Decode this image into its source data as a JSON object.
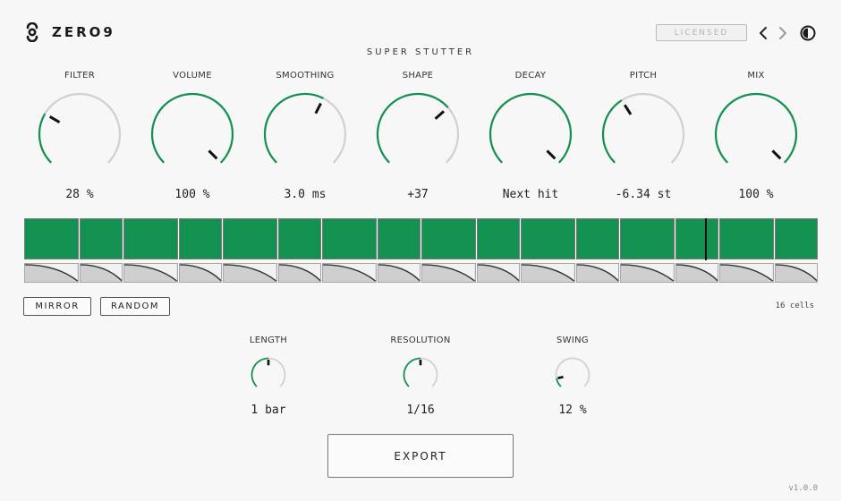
{
  "header": {
    "brand": "ZERO9",
    "plugin_title": "SUPER STUTTER",
    "license_badge": "LICENSED",
    "icons": {
      "logo": "zero9-logo-icon",
      "prev": "chevron-left-icon",
      "next": "chevron-right-icon",
      "theme": "half-circle-theme-icon"
    }
  },
  "colors": {
    "accent": "#129150",
    "track": "#d0d0d0",
    "cell": "#129150",
    "envelope_bg": "#cfcfcf"
  },
  "knobs": [
    {
      "label": "FILTER",
      "value": "28 %",
      "level": 0.28
    },
    {
      "label": "VOLUME",
      "value": "100 %",
      "level": 1.0
    },
    {
      "label": "SMOOTHING",
      "value": "3.0 ms",
      "level": 0.6
    },
    {
      "label": "SHAPE",
      "value": "+37",
      "level": 0.68
    },
    {
      "label": "DECAY",
      "value": "Next hit",
      "level": 1.0
    },
    {
      "label": "PITCH",
      "value": "-6.34 st",
      "level": 0.38
    },
    {
      "label": "MIX",
      "value": "100 %",
      "level": 1.0
    }
  ],
  "sequencer": {
    "cell_count": 16,
    "playhead_cell": 13,
    "playhead_position": 0.7
  },
  "buttons": {
    "mirror": "MIRROR",
    "random": "RANDOM",
    "export": "EXPORT"
  },
  "cells_label": "16 cells",
  "small_knobs": [
    {
      "label": "LENGTH",
      "value": "1 bar",
      "level": 0.5
    },
    {
      "label": "RESOLUTION",
      "value": "1/16",
      "level": 0.5
    },
    {
      "label": "SWING",
      "value": "12 %",
      "level": 0.12
    }
  ],
  "version": "v1.0.0"
}
